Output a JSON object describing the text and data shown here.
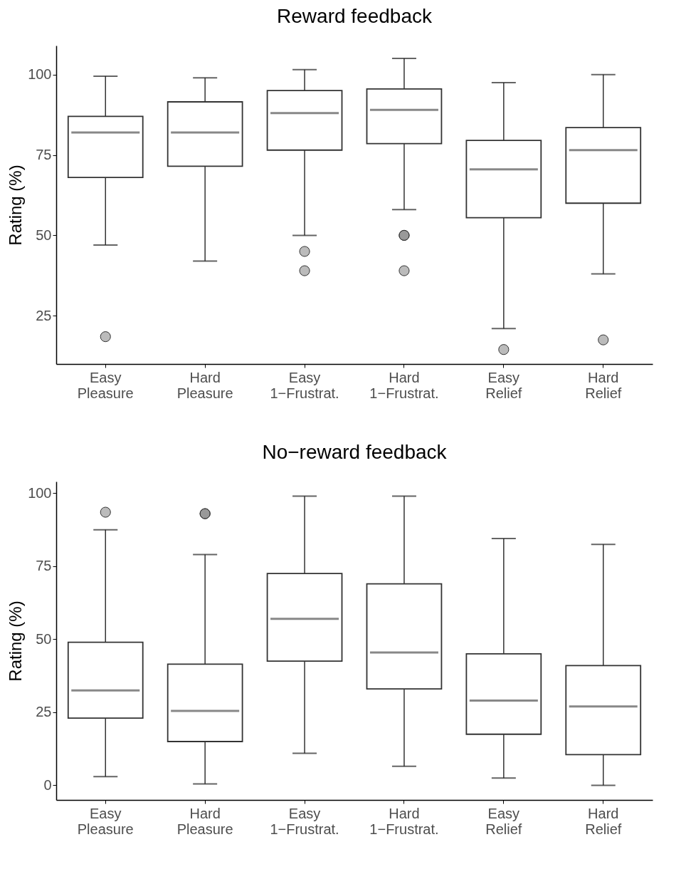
{
  "chart_data": [
    {
      "type": "box",
      "title": "Reward feedback",
      "ylabel": "Rating (%)",
      "categories": [
        "Easy Pleasure",
        "Hard Pleasure",
        "Easy 1−Frustrat.",
        "Hard 1−Frustrat.",
        "Easy Relief",
        "Hard Relief"
      ],
      "ylim": [
        10,
        109
      ],
      "yticks": [
        25,
        50,
        75,
        100
      ],
      "grid": false,
      "boxes": [
        {
          "low": 47,
          "q1": 68,
          "median": 82,
          "q3": 87,
          "high": 99.5,
          "outliers": [
            18.5
          ]
        },
        {
          "low": 42,
          "q1": 71.5,
          "median": 82,
          "q3": 91.5,
          "high": 99
        },
        {
          "low": 50,
          "q1": 76.5,
          "median": 88,
          "q3": 95,
          "high": 101.5,
          "outliers": [
            45,
            39
          ]
        },
        {
          "low": 58,
          "q1": 78.5,
          "median": 89,
          "q3": 95.5,
          "high": 105,
          "outliers": [
            50,
            50,
            39
          ]
        },
        {
          "low": 21,
          "q1": 55.5,
          "median": 70.5,
          "q3": 79.5,
          "high": 97.5,
          "outliers": [
            14.5
          ]
        },
        {
          "low": 38,
          "q1": 60,
          "median": 76.5,
          "q3": 83.5,
          "high": 100,
          "outliers": [
            17.5
          ]
        }
      ]
    },
    {
      "type": "box",
      "title": "No−reward feedback",
      "ylabel": "Rating (%)",
      "categories": [
        "Easy Pleasure",
        "Hard Pleasure",
        "Easy 1−Frustrat.",
        "Hard 1−Frustrat.",
        "Easy Relief",
        "Hard Relief"
      ],
      "ylim": [
        -5,
        104
      ],
      "yticks": [
        0,
        25,
        50,
        75,
        100
      ],
      "grid": false,
      "boxes": [
        {
          "low": 3,
          "q1": 23,
          "median": 32.5,
          "q3": 49,
          "high": 87.5,
          "outliers": [
            93.5
          ]
        },
        {
          "low": 0.5,
          "q1": 15,
          "median": 25.5,
          "q3": 41.5,
          "high": 79,
          "outliers": [
            93,
            93
          ]
        },
        {
          "low": 11,
          "q1": 42.5,
          "median": 57,
          "q3": 72.5,
          "high": 99
        },
        {
          "low": 6.5,
          "q1": 33,
          "median": 45.5,
          "q3": 69,
          "high": 99
        },
        {
          "low": 2.5,
          "q1": 17.5,
          "median": 29,
          "q3": 45,
          "high": 84.5
        },
        {
          "low": 0,
          "q1": 10.5,
          "median": 27,
          "q3": 41,
          "high": 82.5
        }
      ]
    }
  ]
}
